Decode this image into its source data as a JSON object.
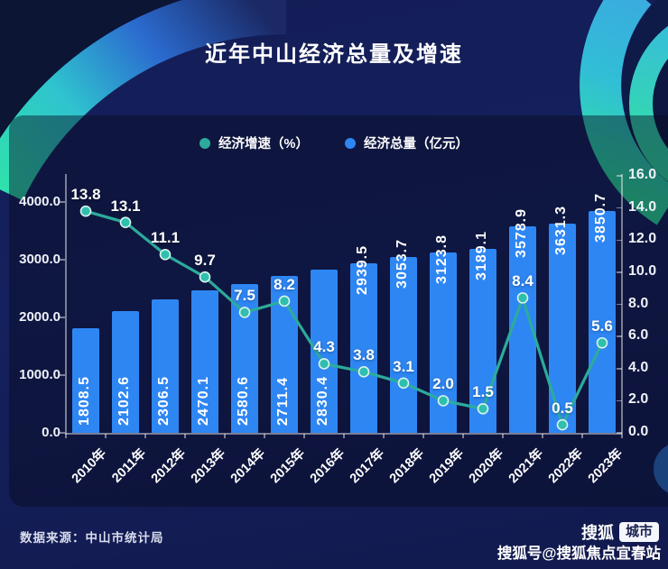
{
  "title": "近年中山经济总量及增速",
  "legend": {
    "items": [
      {
        "label": "经济增速（%）",
        "color": "#2cab9c"
      },
      {
        "label": "经济总量（亿元）",
        "color": "#2e86f3"
      }
    ]
  },
  "chart_data": {
    "type": "bar",
    "subtype": "bar+line combo, dual y-axis",
    "categories": [
      "2010年",
      "2011年",
      "2012年",
      "2013年",
      "2014年",
      "2015年",
      "2016年",
      "2017年",
      "2018年",
      "2019年",
      "2020年",
      "2021年",
      "2022年",
      "2023年"
    ],
    "series": [
      {
        "name": "经济总量（亿元）",
        "type": "bar",
        "axis": "left",
        "color": "#2e86f3",
        "values": [
          1808.5,
          2102.6,
          2306.5,
          2470.1,
          2580.6,
          2711.4,
          2830.4,
          2939.5,
          3053.7,
          3123.8,
          3189.1,
          3578.9,
          3631.3,
          3850.7
        ]
      },
      {
        "name": "经济增速（%）",
        "type": "line",
        "axis": "right",
        "color": "#2cab9c",
        "marker_fill": "#2fbfae",
        "marker_stroke": "#d9f3ec",
        "values": [
          13.8,
          13.1,
          11.1,
          9.7,
          7.5,
          8.2,
          4.3,
          3.8,
          3.1,
          2.0,
          1.5,
          8.4,
          0.5,
          5.6
        ]
      }
    ],
    "left_axis": {
      "ticks": [
        4000,
        3000,
        2000,
        1000,
        0
      ],
      "range": [
        0,
        4000
      ],
      "format": "one-decimal"
    },
    "right_axis": {
      "ticks": [
        16,
        14,
        12,
        10,
        8,
        6,
        4,
        2,
        0
      ],
      "range": [
        0,
        16
      ],
      "format": "one-decimal"
    },
    "grid": false,
    "legend_position": "top-center"
  },
  "theme": {
    "background": "#131c55",
    "bar_blue": "#2e86f3",
    "line_teal": "#2cab9c",
    "accent_green": "#2fe6a4",
    "accent_cyan": "#36c3de"
  },
  "footer": {
    "source": "数据来源：中山市统计局",
    "brand": "搜狐",
    "brand_badge": "城市",
    "watermark": "搜狐号@搜狐焦点宜春站"
  }
}
